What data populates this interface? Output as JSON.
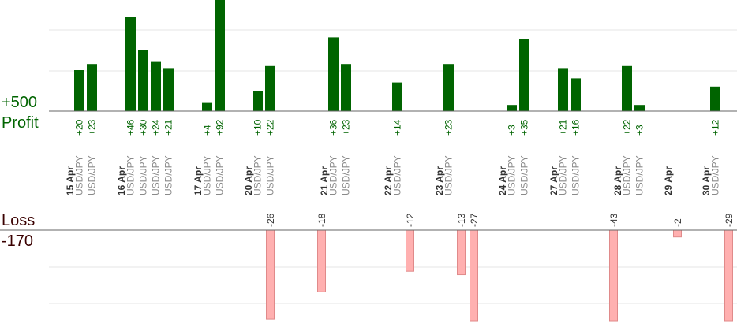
{
  "labels": {
    "profit_max": "+500",
    "profit_title": "Profit",
    "loss_title": "Loss",
    "loss_max": "-170"
  },
  "colors": {
    "profit_bar": "#006400",
    "profit_text": "#006400",
    "loss_bar": "#ffb0b0",
    "loss_bar_stroke": "#e08a8a",
    "loss_text": "#333333",
    "date_text": "#333333",
    "pair_text": "#8a8a8a",
    "axis": "#666666",
    "grid": "#e6e6e6"
  },
  "chart_data": [
    {
      "type": "bar",
      "name": "profit",
      "ylim": [
        0,
        500
      ],
      "grid": true,
      "days": [
        {
          "date": "15 Apr",
          "trades": [
            {
              "pair": "USD/JPY",
              "value": 20,
              "label": "+20"
            },
            {
              "pair": "USD/JPY",
              "value": 23,
              "label": "+23"
            }
          ]
        },
        {
          "date": "16 Apr",
          "trades": [
            {
              "pair": "USD/JPY",
              "value": 46,
              "label": "+46"
            },
            {
              "pair": "USD/JPY",
              "value": 30,
              "label": "+30"
            },
            {
              "pair": "USD/JPY",
              "value": 24,
              "label": "+24"
            },
            {
              "pair": "USD/JPY",
              "value": 21,
              "label": "+21"
            }
          ]
        },
        {
          "date": "17 Apr",
          "trades": [
            {
              "pair": "USD/JPY",
              "value": 4,
              "label": "+4"
            },
            {
              "pair": "USD/JPY",
              "value": 92,
              "label": "+92"
            }
          ]
        },
        {
          "date": "20 Apr",
          "trades": [
            {
              "pair": "USD/JPY",
              "value": 10,
              "label": "+10"
            },
            {
              "pair": "USD/JPY",
              "value": 22,
              "label": "+22"
            }
          ]
        },
        {
          "date": "21 Apr",
          "trades": [
            {
              "pair": "USD/JPY",
              "value": 36,
              "label": "+36"
            },
            {
              "pair": "USD/JPY",
              "value": 23,
              "label": "+23"
            }
          ]
        },
        {
          "date": "22 Apr",
          "trades": [
            {
              "pair": "USD/JPY",
              "value": 14,
              "label": "+14"
            }
          ]
        },
        {
          "date": "23 Apr",
          "trades": [
            {
              "pair": "USD/JPY",
              "value": 23,
              "label": "+23"
            }
          ]
        },
        {
          "date": "24 Apr",
          "trades": [
            {
              "pair": "USD/JPY",
              "value": 3,
              "label": "+3"
            },
            {
              "pair": "USD/JPY",
              "value": 35,
              "label": "+35"
            }
          ]
        },
        {
          "date": "27 Apr",
          "trades": [
            {
              "pair": "USD/JPY",
              "value": 21,
              "label": "+21"
            },
            {
              "pair": "USD/JPY",
              "value": 16,
              "label": "+16"
            }
          ]
        },
        {
          "date": "28 Apr",
          "trades": [
            {
              "pair": "USD/JPY",
              "value": 22,
              "label": "+22"
            },
            {
              "pair": "USD/JPY",
              "value": 3,
              "label": "+3"
            }
          ]
        },
        {
          "date": "29 Apr",
          "trades": []
        },
        {
          "date": "30 Apr",
          "trades": [
            {
              "pair": "USD/JPY",
              "value": 12,
              "label": "+12"
            }
          ]
        }
      ]
    },
    {
      "type": "bar",
      "name": "loss",
      "ylim": [
        0,
        170
      ],
      "grid": true,
      "days": [
        {
          "date": "15 Apr",
          "trades": []
        },
        {
          "date": "16 Apr",
          "trades": []
        },
        {
          "date": "17 Apr",
          "trades": []
        },
        {
          "date": "20 Apr",
          "trades": [
            {
              "value": -26,
              "label": "-26"
            }
          ]
        },
        {
          "date": "21 Apr",
          "trades": [
            {
              "value": -18,
              "label": "-18"
            }
          ]
        },
        {
          "date": "22 Apr",
          "trades": [
            {
              "value": -12,
              "label": "-12"
            }
          ]
        },
        {
          "date": "23 Apr",
          "trades": [
            {
              "value": -13,
              "label": "-13"
            },
            {
              "value": -27,
              "label": "-27"
            }
          ]
        },
        {
          "date": "24 Apr",
          "trades": []
        },
        {
          "date": "27 Apr",
          "trades": []
        },
        {
          "date": "28 Apr",
          "trades": [
            {
              "value": -43,
              "label": "-43"
            }
          ]
        },
        {
          "date": "29 Apr",
          "trades": [
            {
              "value": -2,
              "label": "-2"
            }
          ]
        },
        {
          "date": "30 Apr",
          "trades": [
            {
              "value": -29,
              "label": "-29"
            }
          ]
        }
      ]
    }
  ]
}
